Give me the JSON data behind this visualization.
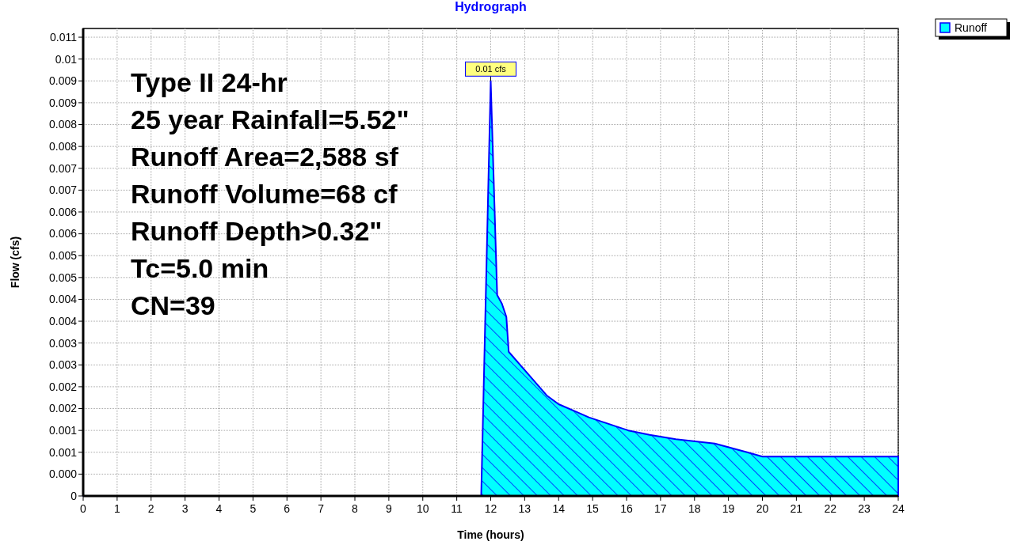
{
  "chart_data": {
    "type": "area",
    "title": "Hydrograph",
    "xlabel": "Time  (hours)",
    "ylabel": "Flow  (cfs)",
    "x": [
      0,
      11.72,
      12.0,
      12.19,
      12.33,
      12.46,
      12.53,
      12.98,
      13.65,
      14.0,
      14.6,
      14.89,
      15.66,
      16.05,
      16.68,
      17.45,
      18.6,
      19.55,
      20.0,
      21.25,
      23.28,
      24.0
    ],
    "series": [
      {
        "name": "Runoff",
        "color": "#00ffff",
        "values": [
          0,
          0,
          0.0095,
          0.0046,
          0.0044,
          0.0041,
          0.0033,
          0.0029,
          0.0023,
          0.0021,
          0.0019,
          0.0018,
          0.0016,
          0.0015,
          0.0014,
          0.0013,
          0.0012,
          0.001,
          0.0009,
          0.0009,
          0.0009,
          0.0009
        ]
      }
    ],
    "xlim": [
      0,
      24
    ],
    "xticks": [
      0,
      1,
      2,
      3,
      4,
      5,
      6,
      7,
      8,
      9,
      10,
      11,
      12,
      13,
      14,
      15,
      16,
      17,
      18,
      19,
      20,
      21,
      22,
      23,
      24
    ],
    "ylim": [
      0,
      0.0107
    ],
    "yticks": [
      0,
      {
        "value": 0.0005,
        "label": "0.000"
      },
      {
        "value": 0.001,
        "label": "0.001"
      },
      {
        "value": 0.0015,
        "label": "0.001"
      },
      {
        "value": 0.002,
        "label": "0.002"
      },
      {
        "value": 0.0025,
        "label": "0.002"
      },
      {
        "value": 0.003,
        "label": "0.003"
      },
      {
        "value": 0.0035,
        "label": "0.003"
      },
      {
        "value": 0.004,
        "label": "0.004"
      },
      {
        "value": 0.0045,
        "label": "0.004"
      },
      {
        "value": 0.005,
        "label": "0.005"
      },
      {
        "value": 0.0055,
        "label": "0.005"
      },
      {
        "value": 0.006,
        "label": "0.006"
      },
      {
        "value": 0.0065,
        "label": "0.006"
      },
      {
        "value": 0.007,
        "label": "0.007"
      },
      {
        "value": 0.0075,
        "label": "0.007"
      },
      {
        "value": 0.008,
        "label": "0.008"
      },
      {
        "value": 0.0085,
        "label": "0.008"
      },
      {
        "value": 0.009,
        "label": "0.009"
      },
      {
        "value": 0.0095,
        "label": "0.009"
      },
      {
        "value": 0.01,
        "label": "0.01"
      },
      {
        "value": 0.0105,
        "label": "0.011"
      }
    ],
    "grid": true,
    "legend": "top right",
    "annotations": [
      "Type II 24-hr",
      "25 year Rainfall=5.52\"",
      "Runoff Area=2,588 sf",
      "Runoff Volume=68 cf",
      "Runoff Depth>0.32\"",
      "Tc=5.0 min",
      "CN=39",
      {
        "text": "0.01 cfs",
        "x": 12.0,
        "y": 0.0095
      }
    ]
  }
}
